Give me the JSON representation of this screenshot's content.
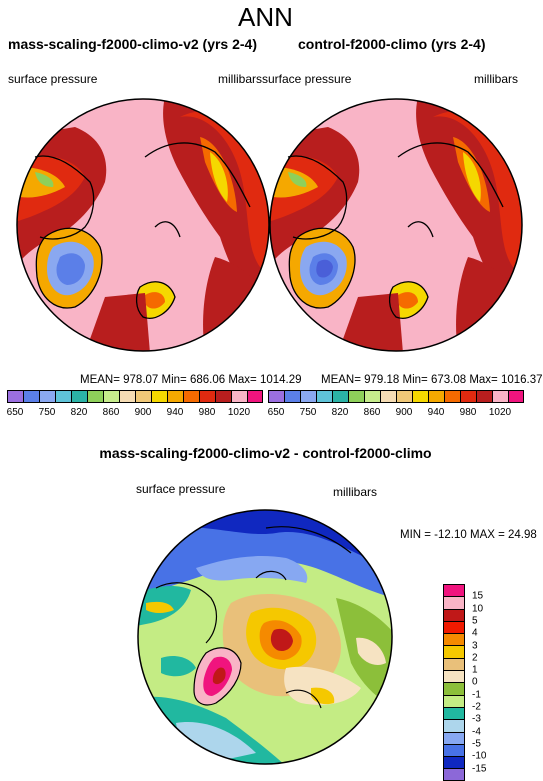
{
  "main_title": "ANN",
  "left_panel": {
    "title": "mass-scaling-f2000-climo-v2 (yrs 2-4)",
    "variable": "surface pressure",
    "units": "millibars",
    "stats": "MEAN= 978.07  Min= 686.06  Max= 1014.29"
  },
  "right_panel": {
    "title": "control-f2000-climo (yrs 2-4)",
    "variable": "surface pressure",
    "units": "millibars",
    "stats": "MEAN= 979.18  Min= 673.08  Max= 1016.37"
  },
  "diff_panel": {
    "title": "mass-scaling-f2000-climo-v2 - control-f2000-climo",
    "variable": "surface pressure",
    "units": "millibars",
    "stats": "MIN = -12.10 MAX =  24.98"
  },
  "colorbar_abs": {
    "labels": [
      "650",
      "750",
      "820",
      "860",
      "900",
      "940",
      "980",
      "1020"
    ],
    "colors": [
      "#9b6fe0",
      "#5b7fe8",
      "#8aa8f0",
      "#5fc3d8",
      "#2bb3a6",
      "#8ed05a",
      "#c6ec8c",
      "#f5dcb4",
      "#f0c878",
      "#f5d800",
      "#f5a800",
      "#f56a00",
      "#e02a10",
      "#b81e1e",
      "#f9b4c6",
      "#f0147e"
    ]
  },
  "colorbar_diff": {
    "labels": [
      "15",
      "10",
      "5",
      "4",
      "3",
      "2",
      "1",
      "0",
      "-1",
      "-2",
      "-3",
      "-4",
      "-5",
      "-10",
      "-15"
    ],
    "colors": [
      "#f0147e",
      "#f9b4c6",
      "#c01818",
      "#f01a00",
      "#f58a00",
      "#f5c800",
      "#e9c07a",
      "#f6e3c2",
      "#8cbf3a",
      "#c4ec84",
      "#21b8a0",
      "#add6ec",
      "#87a8f2",
      "#4872e6",
      "#1028c0",
      "#8c68d8"
    ]
  }
}
